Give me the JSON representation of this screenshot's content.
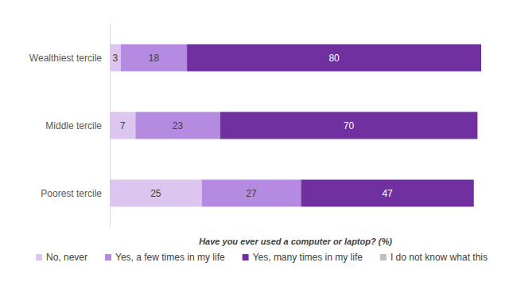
{
  "chart_data": {
    "type": "bar",
    "orientation": "horizontal",
    "stacked": true,
    "data_labels": true,
    "tick_labels": "y",
    "grid": false,
    "x_label": "Have you ever used a computer or laptop? (%)",
    "categories": [
      "Wealthiest tercile",
      "Middle tercile",
      "Poorest tercile"
    ],
    "xlim": [
      0,
      101
    ],
    "legend": "bottom",
    "series": [
      {
        "name": "No, never",
        "color": "#dcc6ef",
        "values": [
          3,
          7,
          25
        ]
      },
      {
        "name": "Yes, a few times in my life",
        "color": "#b48be0",
        "values": [
          18,
          23,
          27
        ]
      },
      {
        "name": "Yes, many times in my life",
        "color": "#7030a0",
        "values": [
          80,
          70,
          47
        ]
      },
      {
        "name": "I do not know what this",
        "color": "#bfbfbf",
        "values": [
          0,
          0,
          0
        ]
      }
    ]
  }
}
